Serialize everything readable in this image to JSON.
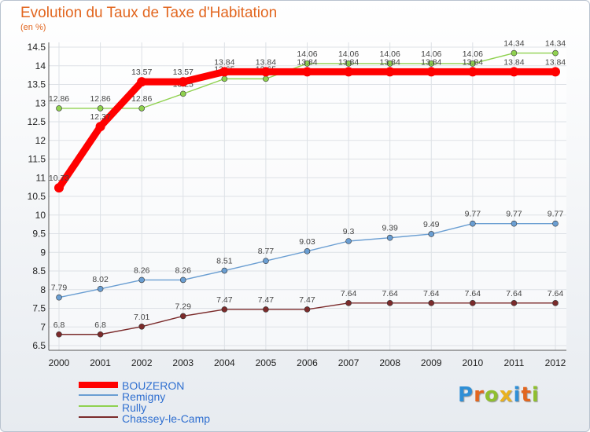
{
  "header": {
    "title": "Evolution du Taux de Taxe d'Habitation",
    "unit": "(en %)"
  },
  "chart_data": {
    "type": "line",
    "title": "Evolution du Taux de Taxe d'Habitation",
    "ylabel": "(en %)",
    "xlabel": "",
    "x": [
      "2000",
      "2001",
      "2002",
      "2003",
      "2004",
      "2005",
      "2006",
      "2007",
      "2008",
      "2009",
      "2010",
      "2011",
      "2012"
    ],
    "ylim": [
      6.5,
      14.5
    ],
    "yticks": [
      "6.5",
      "7",
      "7.5",
      "8",
      "8.5",
      "9",
      "9.5",
      "10",
      "10.5",
      "11",
      "11.5",
      "12",
      "12.5",
      "13",
      "13.5",
      "14",
      "14.5"
    ],
    "grid": true,
    "legend_position": "bottom-left",
    "series": [
      {
        "name": "BOUZERON",
        "color": "#ff0000",
        "values": [
          10.73,
          12.37,
          13.57,
          13.57,
          13.84,
          13.84,
          13.84,
          13.84,
          13.84,
          13.84,
          13.84,
          13.84,
          13.84
        ],
        "labels": [
          "10.73",
          "12.37",
          "13.57",
          "13.57",
          "13.84",
          "13.84",
          "13.84",
          "13.84",
          "13.84",
          "13.84",
          "13.84",
          "13.84",
          "13.84"
        ]
      },
      {
        "name": "Remigny",
        "color": "#6a9ed2",
        "values": [
          7.79,
          8.02,
          8.26,
          8.26,
          8.51,
          8.77,
          9.03,
          9.3,
          9.39,
          9.49,
          9.77,
          9.77,
          9.77
        ],
        "labels": [
          "7.79",
          "8.02",
          "8.26",
          "8.26",
          "8.51",
          "8.77",
          "9.03",
          "9.3",
          "9.39",
          "9.49",
          "9.77",
          "9.77",
          "9.77"
        ]
      },
      {
        "name": "Rully",
        "color": "#8fd14f",
        "values": [
          12.86,
          12.86,
          12.86,
          13.25,
          13.65,
          13.65,
          14.06,
          14.06,
          14.06,
          14.06,
          14.06,
          14.34,
          14.34
        ],
        "labels": [
          "12.86",
          "12.86",
          "12.86",
          "13.25",
          "13.65",
          "13.65",
          "14.06",
          "14.06",
          "14.06",
          "14.06",
          "14.06",
          "14.34",
          "14.34"
        ]
      },
      {
        "name": "Chassey-le-Camp",
        "color": "#7b2b2b",
        "values": [
          6.8,
          6.8,
          7.01,
          7.29,
          7.47,
          7.47,
          7.47,
          7.64,
          7.64,
          7.64,
          7.64,
          7.64,
          7.64
        ],
        "labels": [
          "6.8",
          "6.8",
          "7.01",
          "7.29",
          "7.47",
          "7.47",
          "7.47",
          "7.64",
          "7.64",
          "7.64",
          "7.64",
          "7.64",
          "7.64"
        ]
      }
    ]
  },
  "legend": {
    "items": [
      {
        "label": "BOUZERON",
        "color": "#ff0000"
      },
      {
        "label": "Remigny",
        "color": "#6a9ed2"
      },
      {
        "label": "Rully",
        "color": "#8fd14f"
      },
      {
        "label": "Chassey-le-Camp",
        "color": "#7b2b2b"
      }
    ]
  },
  "logo": {
    "letters": [
      "P",
      "r",
      "o",
      "x",
      "i",
      "t",
      "i"
    ],
    "colors": [
      "#2f8fd6",
      "#e2661f",
      "#8fbf2f",
      "#e9b21f",
      "#2f8fd6",
      "#e2661f",
      "#8fbf2f"
    ]
  }
}
